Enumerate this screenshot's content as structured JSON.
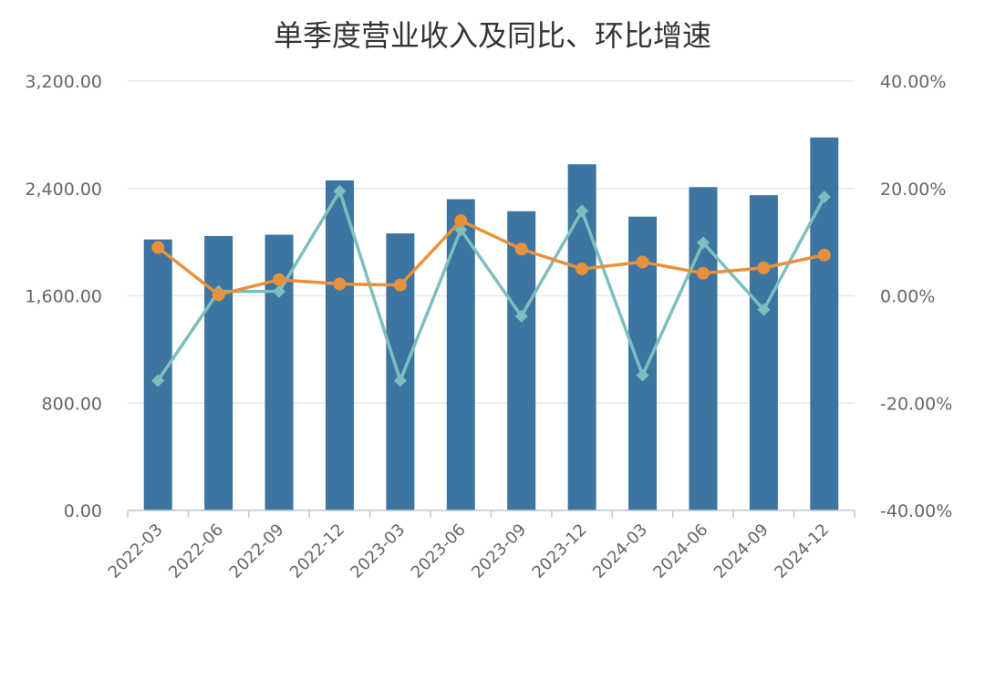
{
  "chart_data": {
    "type": "bar",
    "title": "单季度营业收入及同比、环比增速",
    "categories": [
      "2022-03",
      "2022-06",
      "2022-09",
      "2022-12",
      "2023-03",
      "2023-06",
      "2023-09",
      "2023-12",
      "2024-03",
      "2024-06",
      "2024-09",
      "2024-12"
    ],
    "series": [
      {
        "type": "bar",
        "axis": "left",
        "color": "#3d74a0",
        "values": [
          2020,
          2045,
          2055,
          2460,
          2065,
          2320,
          2230,
          2580,
          2190,
          2410,
          2350,
          2780
        ]
      },
      {
        "type": "line",
        "axis": "right",
        "marker": "circle",
        "color": "#e8913c",
        "values": [
          9.0,
          0.2,
          3.0,
          2.2,
          2.0,
          14.0,
          8.7,
          5.0,
          6.3,
          4.2,
          5.2,
          7.6
        ]
      },
      {
        "type": "line",
        "axis": "right",
        "marker": "diamond",
        "color": "#7dbfbf",
        "values": [
          -15.8,
          0.8,
          0.8,
          19.5,
          -15.8,
          12.3,
          -3.8,
          15.8,
          -14.8,
          9.9,
          -2.6,
          18.4
        ]
      }
    ],
    "y_left": {
      "min": 0,
      "max": 3200,
      "ticks": [
        "0.00",
        "800.00",
        "1,600.00",
        "2,400.00",
        "3,200.00"
      ]
    },
    "y_right": {
      "min": -40,
      "max": 40,
      "ticks": [
        "-40.00%",
        "-20.00%",
        "0.00%",
        "20.00%",
        "40.00%"
      ]
    },
    "grid": true
  }
}
